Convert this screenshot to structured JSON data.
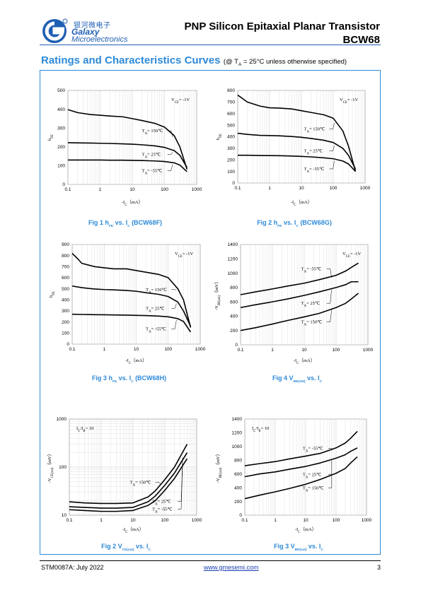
{
  "header": {
    "brand_cn": "银河微电子",
    "brand_en_line1": "Galaxy",
    "brand_en_line2": "Microelectronics",
    "title": "PNP Silicon Epitaxial Planar Transistor",
    "part": "BCW68",
    "accent_color": "#1f5fb3"
  },
  "section": {
    "title": "Ratings and Characteristics Curves",
    "condition": "(@ T",
    "condition_sub": "A",
    "condition_rest": " = 25°C unless otherwise specified)",
    "title_color": "#2e8ad8"
  },
  "footer": {
    "doc": "STM0087A: July 2022",
    "url": "www.gmesemi.com",
    "page": "3"
  },
  "chart_data": [
    {
      "id": "fig1",
      "type": "line",
      "xscale": "log",
      "xlim": [
        0.1,
        1000
      ],
      "ylim": [
        0,
        500
      ],
      "xticks": [
        "0.1",
        "1",
        "10",
        "100",
        "1000"
      ],
      "yticks": [
        "0",
        "100",
        "200",
        "300",
        "400",
        "500"
      ],
      "xlabel": "-I",
      "xlabel_sub": "C",
      "xlabel_unit": "（mA）",
      "ylabel": "h",
      "ylabel_sub": "FE",
      "cond": "V",
      "cond_sub": "CE",
      "cond_rest": "= -1V",
      "caption_pre": "Fig 1    h",
      "caption_sub": "FE",
      "caption_mid": " vs. I",
      "caption_sub2": "C",
      "caption_post": " (BCW68F)",
      "series": [
        {
          "name": "T",
          "name_sub": "A",
          "name_rest": "= 150℃",
          "x": [
            0.1,
            0.2,
            0.5,
            1,
            2,
            5,
            10,
            20,
            50,
            100,
            200,
            300,
            500
          ],
          "y": [
            398,
            382,
            372,
            368,
            364,
            360,
            350,
            340,
            325,
            305,
            260,
            200,
            80
          ],
          "label_x": 20,
          "label_y": 278
        },
        {
          "name": "T",
          "name_sub": "A",
          "name_rest": "= 25℃",
          "x": [
            0.1,
            0.2,
            0.5,
            1,
            2,
            5,
            10,
            20,
            50,
            100,
            200,
            300,
            500
          ],
          "y": [
            222,
            221,
            220,
            219,
            218,
            216,
            214,
            211,
            205,
            197,
            180,
            155,
            90
          ],
          "label_x": 20,
          "label_y": 152
        },
        {
          "name": "T",
          "name_sub": "A",
          "name_rest": "= -55℃",
          "x": [
            0.1,
            0.2,
            0.5,
            1,
            2,
            5,
            10,
            20,
            50,
            100,
            200,
            300,
            500
          ],
          "y": [
            130,
            130,
            130,
            130,
            129,
            129,
            128,
            127,
            125,
            122,
            115,
            103,
            68
          ],
          "label_x": 20,
          "label_y": 66
        }
      ]
    },
    {
      "id": "fig2",
      "type": "line",
      "xscale": "log",
      "xlim": [
        0.1,
        1000
      ],
      "ylim": [
        0,
        800
      ],
      "xticks": [
        "0.1",
        "1",
        "10",
        "100",
        "1000"
      ],
      "yticks": [
        "0",
        "100",
        "200",
        "300",
        "400",
        "500",
        "600",
        "700",
        "800"
      ],
      "xlabel": "-I",
      "xlabel_sub": "C",
      "xlabel_unit": "（mA）",
      "ylabel": "h",
      "ylabel_sub": "FE",
      "cond": "V",
      "cond_sub": "CE",
      "cond_rest": "= -1V",
      "caption_pre": "Fig 2    h",
      "caption_sub": "FE",
      "caption_mid": " vs. I",
      "caption_sub2": "C",
      "caption_post": " (BCW68G)",
      "series": [
        {
          "name": "T",
          "name_sub": "A",
          "name_rest": "= 150℃",
          "x": [
            0.1,
            0.2,
            0.5,
            1,
            2,
            5,
            10,
            20,
            50,
            100,
            200,
            300,
            500
          ],
          "y": [
            760,
            700,
            665,
            650,
            648,
            640,
            625,
            610,
            590,
            560,
            450,
            320,
            100
          ],
          "label_x": 12,
          "label_y": 455
        },
        {
          "name": "T",
          "name_sub": "A",
          "name_rest": "= 25℃",
          "x": [
            0.1,
            0.2,
            0.5,
            1,
            2,
            5,
            10,
            20,
            50,
            100,
            200,
            300,
            500
          ],
          "y": [
            430,
            420,
            412,
            410,
            408,
            402,
            395,
            385,
            370,
            350,
            300,
            240,
            120
          ],
          "label_x": 12,
          "label_y": 265
        },
        {
          "name": "T",
          "name_sub": "A",
          "name_rest": "= -55℃",
          "x": [
            0.1,
            0.2,
            0.5,
            1,
            2,
            5,
            10,
            20,
            50,
            100,
            200,
            300,
            500
          ],
          "y": [
            240,
            240,
            238,
            237,
            236,
            233,
            230,
            226,
            218,
            210,
            190,
            165,
            100
          ],
          "label_x": 12,
          "label_y": 110
        }
      ]
    },
    {
      "id": "fig3",
      "type": "line",
      "xscale": "log",
      "xlim": [
        0.1,
        1000
      ],
      "ylim": [
        0,
        900
      ],
      "xticks": [
        "0.1",
        "1",
        "10",
        "100",
        "1000"
      ],
      "yticks": [
        "0",
        "100",
        "200",
        "300",
        "400",
        "500",
        "600",
        "700",
        "800",
        "900"
      ],
      "xlabel": "-I",
      "xlabel_sub": "C",
      "xlabel_unit": "（mA）",
      "ylabel": "h",
      "ylabel_sub": "FE",
      "cond": "V",
      "cond_sub": "CE",
      "cond_rest": "= -1V",
      "caption_pre": "Fig 3    h",
      "caption_sub": "FE",
      "caption_mid": " vs. I",
      "caption_sub2": "C",
      "caption_post": " (BCW68H)",
      "series": [
        {
          "name": "T",
          "name_sub": "A",
          "name_rest": "= 150℃",
          "x": [
            0.1,
            0.15,
            0.2,
            0.5,
            1,
            2,
            5,
            10,
            20,
            50,
            100,
            200,
            300,
            500
          ],
          "y": [
            820,
            770,
            730,
            700,
            690,
            680,
            680,
            665,
            650,
            630,
            600,
            500,
            400,
            150
          ],
          "label_x": 20,
          "label_y": 480
        },
        {
          "name": "T",
          "name_sub": "A",
          "name_rest": "= 25℃",
          "x": [
            0.1,
            0.2,
            0.5,
            1,
            2,
            5,
            10,
            20,
            50,
            100,
            200,
            300,
            500
          ],
          "y": [
            525,
            510,
            498,
            493,
            490,
            485,
            478,
            465,
            450,
            430,
            380,
            300,
            160
          ],
          "label_x": 20,
          "label_y": 310
        },
        {
          "name": "T",
          "name_sub": "A",
          "name_rest": "= -55℃",
          "x": [
            0.1,
            0.2,
            0.5,
            1,
            2,
            5,
            10,
            20,
            50,
            100,
            200,
            300,
            500
          ],
          "y": [
            270,
            268,
            266,
            265,
            264,
            262,
            260,
            258,
            253,
            247,
            230,
            205,
            110
          ],
          "label_x": 20,
          "label_y": 125
        }
      ]
    },
    {
      "id": "fig4",
      "type": "line",
      "xscale": "log",
      "xlim": [
        0.1,
        1000
      ],
      "ylim": [
        0,
        1400
      ],
      "xticks": [
        "0.1",
        "1",
        "10",
        "100",
        "1000"
      ],
      "yticks": [
        "0",
        "200",
        "400",
        "600",
        "800",
        "1000",
        "1200",
        "1400"
      ],
      "xlabel": "-I",
      "xlabel_sub": "C",
      "xlabel_unit": "（mA）",
      "ylabel": "-V",
      "ylabel_sub": "BE(on)",
      "ylabel_unit": "（mV）",
      "cond": "V",
      "cond_sub": "CE",
      "cond_rest": "= -1V",
      "caption_pre": "Fig 4    V",
      "caption_sub": "BE(ON)",
      "caption_mid": " vs. I",
      "caption_sub2": "C",
      "caption_post": "",
      "series": [
        {
          "name": "T",
          "name_sub": "A",
          "name_rest": "= -55℃",
          "x": [
            0.1,
            0.3,
            1,
            3,
            10,
            30,
            100,
            200,
            300,
            500
          ],
          "y": [
            700,
            740,
            780,
            820,
            860,
            910,
            970,
            1030,
            1080,
            1140
          ],
          "label_x": 8,
          "label_y": 1040
        },
        {
          "name": "T",
          "name_sub": "A",
          "name_rest": "= 25℃",
          "x": [
            0.1,
            0.3,
            1,
            3,
            10,
            30,
            100,
            200,
            300,
            500
          ],
          "y": [
            520,
            560,
            600,
            640,
            690,
            740,
            800,
            840,
            880,
            880
          ],
          "label_x": 8,
          "label_y": 560
        },
        {
          "name": "T",
          "name_sub": "A",
          "name_rest": "= 150℃",
          "x": [
            0.1,
            0.3,
            1,
            3,
            10,
            30,
            100,
            200,
            300,
            500
          ],
          "y": [
            200,
            240,
            290,
            340,
            390,
            440,
            520,
            580,
            640,
            720
          ],
          "label_x": 8,
          "label_y": 300
        }
      ]
    },
    {
      "id": "fig5",
      "type": "line",
      "xscale": "log",
      "yscale": "log",
      "xlim": [
        0.1,
        1000
      ],
      "ylim": [
        10,
        1000
      ],
      "xticks": [
        "0.1",
        "1",
        "10",
        "100",
        "1000"
      ],
      "yticks": [
        "10",
        "100",
        "1000"
      ],
      "xlabel": "-I",
      "xlabel_sub": "C",
      "xlabel_unit": "（mA）",
      "ylabel": "-V",
      "ylabel_sub": "CE(sat)",
      "ylabel_unit": "（mV）",
      "cond": "I",
      "cond_sub": "C",
      "cond_rest": "/I",
      "cond_sub2": "B",
      "cond_rest2": "= 10",
      "caption_pre": "Fig 2    V",
      "caption_sub": "CE(sat)",
      "caption_mid": " vs. I",
      "caption_sub2": "C",
      "caption_post": "",
      "series": [
        {
          "name": "T",
          "name_sub": "A",
          "name_rest": "= 150℃",
          "x": [
            0.1,
            0.3,
            1,
            3,
            10,
            30,
            50,
            100,
            200,
            500
          ],
          "y": [
            19,
            18,
            17.5,
            17.5,
            18,
            24,
            32,
            55,
            100,
            300
          ],
          "label_x": 8,
          "label_y": 45
        },
        {
          "name": "T",
          "name_sub": "A",
          "name_rest": "= 25℃",
          "x": [
            0.1,
            0.3,
            1,
            3,
            10,
            30,
            50,
            100,
            200,
            500
          ],
          "y": [
            15,
            14.5,
            14,
            14,
            14.5,
            19,
            25,
            42,
            75,
            200
          ],
          "label_x": 40,
          "label_y": 18
        },
        {
          "name": "T",
          "name_sub": "A",
          "name_rest": "= -55℃",
          "x": [
            0.1,
            0.3,
            1,
            3,
            10,
            30,
            50,
            100,
            200,
            500
          ],
          "y": [
            13,
            12.5,
            12,
            12,
            12.5,
            16,
            20,
            33,
            58,
            150
          ],
          "label_x": 40,
          "label_y": 12.5
        }
      ]
    },
    {
      "id": "fig6",
      "type": "line",
      "xscale": "log",
      "xlim": [
        0.1,
        1000
      ],
      "ylim": [
        0,
        1400
      ],
      "xticks": [
        "0.1",
        "1",
        "10",
        "100",
        "1000"
      ],
      "yticks": [
        "0",
        "200",
        "400",
        "600",
        "800",
        "1000",
        "1200",
        "1400"
      ],
      "xlabel": "-I",
      "xlabel_sub": "C",
      "xlabel_unit": "（mA）",
      "ylabel": "-V",
      "ylabel_sub": "BE(sat)",
      "ylabel_unit": "（mV）",
      "cond": "I",
      "cond_sub": "C",
      "cond_rest": "/I",
      "cond_sub2": "B",
      "cond_rest2": "= 10",
      "caption_pre": "Fig 3    V",
      "caption_sub": "BE(sat)",
      "caption_mid": " vs. I",
      "caption_sub2": "C",
      "caption_post": "",
      "series": [
        {
          "name": "T",
          "name_sub": "A",
          "name_rest": "= -55℃",
          "x": [
            0.1,
            0.3,
            1,
            3,
            10,
            30,
            100,
            200,
            300,
            500
          ],
          "y": [
            720,
            750,
            780,
            820,
            860,
            900,
            980,
            1050,
            1120,
            1220
          ],
          "label_x": 8,
          "label_y": 950
        },
        {
          "name": "T",
          "name_sub": "A",
          "name_rest": "= 25℃",
          "x": [
            0.1,
            0.3,
            1,
            3,
            10,
            30,
            100,
            200,
            300,
            500
          ],
          "y": [
            560,
            600,
            630,
            670,
            710,
            760,
            830,
            880,
            930,
            980
          ],
          "label_x": 8,
          "label_y": 570
        },
        {
          "name": "T",
          "name_sub": "A",
          "name_rest": "= 150℃",
          "x": [
            0.1,
            0.3,
            1,
            3,
            10,
            30,
            100,
            200,
            300,
            500
          ],
          "y": [
            240,
            290,
            340,
            390,
            450,
            520,
            610,
            680,
            760,
            850
          ],
          "label_x": 8,
          "label_y": 375
        }
      ]
    }
  ]
}
